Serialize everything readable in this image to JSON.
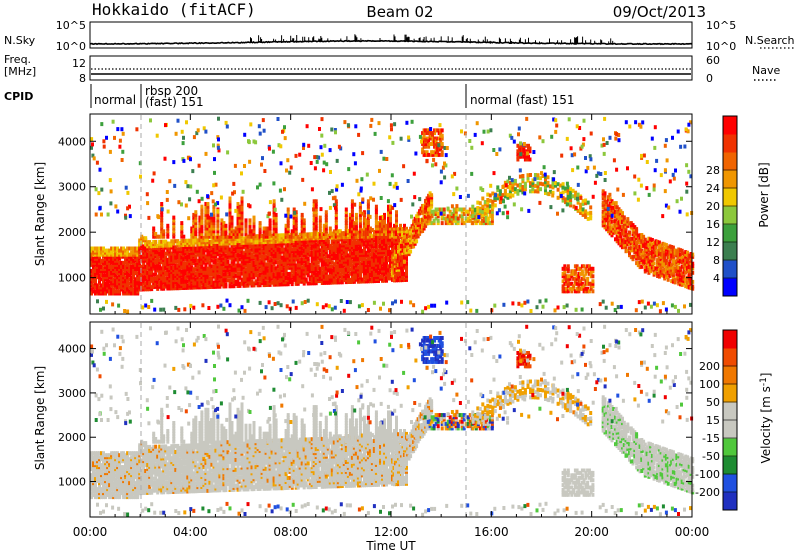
{
  "header": {
    "station": "Hokkaido (fitACF)",
    "beam": "Beam 02",
    "date": "09/Oct/2013"
  },
  "top_panel": {
    "left_label": "N.Sky",
    "right_label": "N.Search",
    "left_ticks": [
      "10^5",
      "10^0"
    ],
    "right_ticks": [
      "10^5",
      "10^0"
    ]
  },
  "freq_panel": {
    "left_label_line1": "Freq.",
    "left_label_line2": "[MHz]",
    "left_ticks": [
      "12",
      "8"
    ],
    "right_label": "Nave",
    "right_ticks": [
      "60",
      "0"
    ]
  },
  "cpid": {
    "label": "CPID",
    "segments": [
      {
        "start_hour": 0,
        "text": "normal"
      },
      {
        "start_hour": 2,
        "text": "rbsp 200"
      },
      {
        "start_hour": 2,
        "text": "(fast) 151"
      },
      {
        "start_hour": 15,
        "text": "normal (fast) 151"
      }
    ]
  },
  "colors": {
    "power_scale": [
      "#0000ff",
      "#2050c8",
      "#3c7f50",
      "#3ca03c",
      "#8cc83c",
      "#f0c800",
      "#f09600",
      "#f06400",
      "#f03200",
      "#ff0000"
    ],
    "velocity_scale": [
      "#2030c0",
      "#2050e0",
      "#1e8c32",
      "#50c83c",
      "#c8c8c0",
      "#c8c8c0",
      "#f0a000",
      "#f07800",
      "#f04b00",
      "#f00000"
    ],
    "ground_scatter": "#c8c8c0"
  },
  "chart_data": [
    {
      "type": "heatmap",
      "name": "power",
      "xlabel": "",
      "ylabel": "Slant Range [km]",
      "x_range_hours": [
        0,
        24
      ],
      "ylim": [
        200,
        4600
      ],
      "yticks": [
        1000,
        2000,
        3000,
        4000
      ],
      "colorbar": {
        "label": "Power [dB]",
        "range": [
          0,
          32
        ],
        "ticks": [
          4,
          8,
          12,
          16,
          20,
          24,
          28
        ]
      }
    },
    {
      "type": "heatmap",
      "name": "velocity",
      "xlabel": "Time UT",
      "ylabel": "Slant Range [km]",
      "x_range_hours": [
        0,
        24
      ],
      "xticks": [
        "00:00",
        "04:00",
        "08:00",
        "12:00",
        "16:00",
        "20:00",
        "00:00"
      ],
      "ylim": [
        200,
        4600
      ],
      "yticks": [
        1000,
        2000,
        3000,
        4000
      ],
      "colorbar": {
        "label": "Velocity [m s",
        "label_superscript": "-1",
        "label_end": "]",
        "ticks": [
          "200",
          "100",
          "50",
          "15",
          "-15",
          "-50",
          "-100",
          "-200"
        ]
      }
    }
  ]
}
